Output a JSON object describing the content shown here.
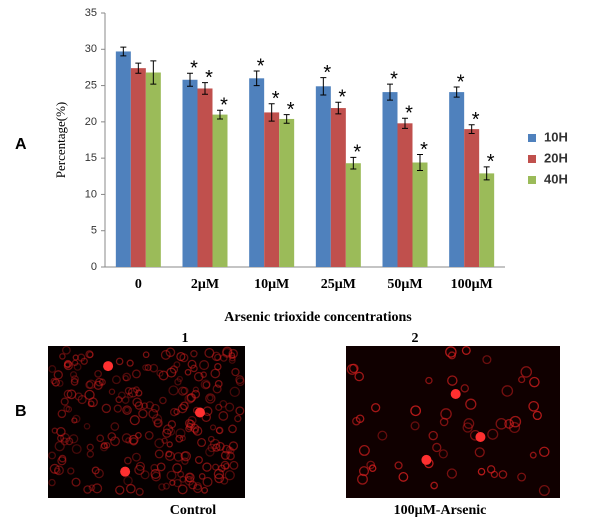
{
  "panel_a_label": "A",
  "panel_b_label": "B",
  "chart_data": {
    "type": "bar",
    "y_label": "Percentage(%)",
    "x_label": "Arsenic trioxide  concentrations",
    "categories": [
      "0",
      "2μM",
      "10μM",
      "25μM",
      "50μM",
      "100μM"
    ],
    "series": [
      {
        "name": "10H",
        "color": "#4f81bd",
        "values": [
          29.7,
          25.8,
          26.0,
          24.9,
          24.1,
          24.1
        ],
        "errors": [
          0.6,
          0.9,
          1.0,
          1.2,
          1.1,
          0.7
        ],
        "annotations": [
          null,
          "*",
          "*",
          "*",
          "*",
          "*"
        ]
      },
      {
        "name": "20H",
        "color": "#c0504d",
        "values": [
          27.4,
          24.6,
          21.3,
          21.9,
          19.8,
          19.0
        ],
        "errors": [
          0.7,
          0.8,
          1.2,
          0.8,
          0.7,
          0.6
        ],
        "annotations": [
          null,
          "*",
          "*",
          "*",
          "*",
          "*"
        ]
      },
      {
        "name": "40H",
        "color": "#9bbb59",
        "values": [
          26.8,
          21.0,
          20.4,
          14.3,
          14.4,
          12.9
        ],
        "errors": [
          1.6,
          0.6,
          0.6,
          0.8,
          1.1,
          0.9
        ],
        "annotations": [
          null,
          "*",
          "*",
          "*",
          "*",
          "*"
        ]
      }
    ],
    "ylim": [
      0,
      35
    ],
    "yticks": [
      0,
      5,
      10,
      15,
      20,
      25,
      30,
      35
    ],
    "grid": false,
    "legend": "right"
  },
  "images": [
    {
      "number": "1",
      "caption": "Control"
    },
    {
      "number": "2",
      "caption": "100μM-Arsenic"
    }
  ]
}
